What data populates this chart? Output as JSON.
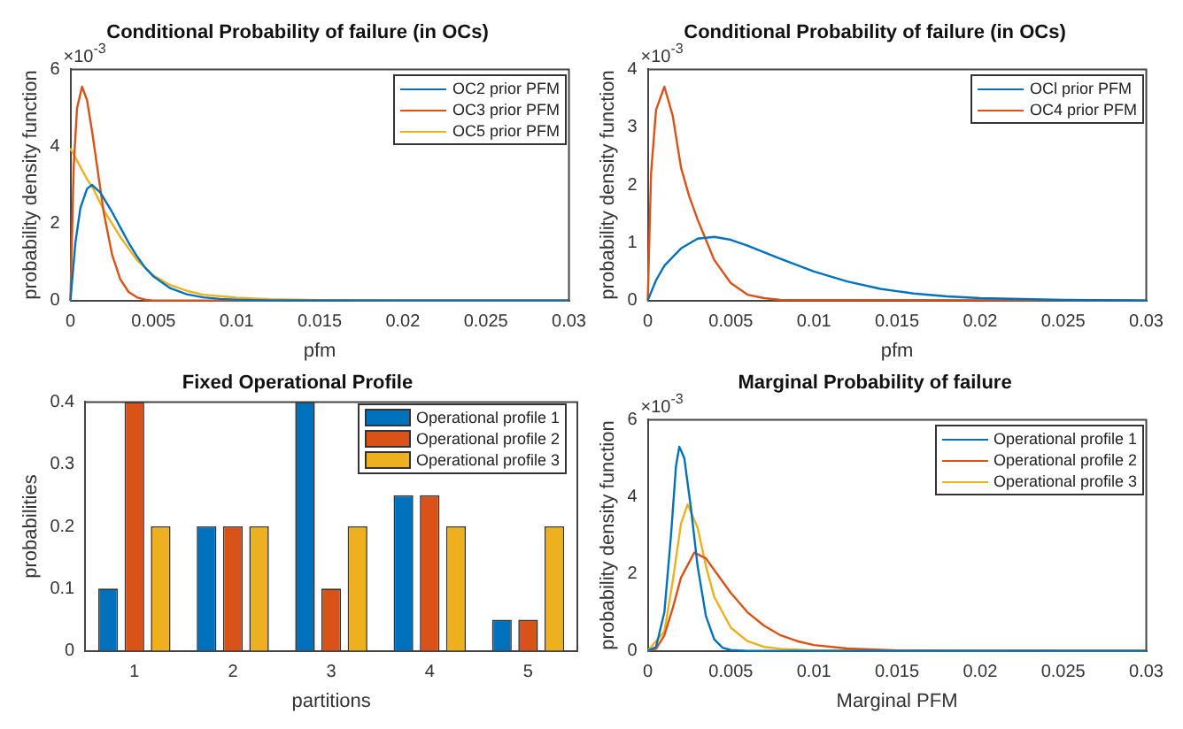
{
  "chart_data": [
    {
      "type": "line",
      "title": "Conditional Probability of failure (in OCs)",
      "xlabel": "pfm",
      "ylabel": "probability density function",
      "annotations": [
        "×10$^{-3}$"
      ],
      "xlim": [
        0,
        0.03
      ],
      "xticks": [
        0,
        0.005,
        0.01,
        0.015,
        0.02,
        0.025,
        0.03
      ],
      "ylim": [
        0,
        6
      ],
      "yticks": [
        0,
        2,
        4,
        6
      ],
      "legend": "top right",
      "marker": "none",
      "line_style": "solid",
      "series": [
        {
          "name": "OC2 prior PFM",
          "color": "#0072bd",
          "x": [
            0,
            0.0003,
            0.0006,
            0.001,
            0.0013,
            0.0018,
            0.0025,
            0.003,
            0.0035,
            0.004,
            0.0045,
            0.005,
            0.006,
            0.007,
            0.008,
            0.009,
            0.01,
            0.012,
            0.015,
            0.02,
            0.025,
            0.03
          ],
          "values": [
            0,
            1.5,
            2.4,
            2.9,
            3.0,
            2.8,
            2.3,
            1.9,
            1.5,
            1.15,
            0.85,
            0.62,
            0.32,
            0.16,
            0.08,
            0.04,
            0.02,
            0,
            0,
            0,
            0,
            0
          ]
        },
        {
          "name": "OC3 prior PFM",
          "color": "#d95319",
          "x": [
            0,
            0.0002,
            0.0004,
            0.0007,
            0.001,
            0.0013,
            0.0016,
            0.002,
            0.0025,
            0.003,
            0.0035,
            0.004,
            0.0045,
            0.005,
            0.006,
            0.03
          ],
          "values": [
            0,
            3.5,
            5.0,
            5.55,
            5.2,
            4.4,
            3.5,
            2.3,
            1.2,
            0.55,
            0.22,
            0.08,
            0.02,
            0,
            0,
            0
          ]
        },
        {
          "name": "OC5 prior PFM",
          "color": "#edb120",
          "x": [
            0,
            0.0005,
            0.001,
            0.0014,
            0.002,
            0.003,
            0.004,
            0.005,
            0.006,
            0.007,
            0.008,
            0.01,
            0.012,
            0.015,
            0.02,
            0.03
          ],
          "values": [
            3.95,
            3.55,
            3.15,
            2.88,
            2.35,
            1.65,
            1.05,
            0.65,
            0.4,
            0.25,
            0.15,
            0.07,
            0.03,
            0.01,
            0,
            0
          ]
        }
      ]
    },
    {
      "type": "line",
      "title": "Conditional Probability of failure (in OCs)",
      "xlabel": "pfm",
      "ylabel": "probability density function",
      "annotations": [
        "×10$^{-3}$"
      ],
      "xlim": [
        0,
        0.03
      ],
      "xticks": [
        0,
        0.005,
        0.01,
        0.015,
        0.02,
        0.025,
        0.03
      ],
      "ylim": [
        0,
        4
      ],
      "yticks": [
        0,
        1,
        2,
        3,
        4
      ],
      "legend": "top right",
      "marker": "none",
      "line_style": "solid",
      "series": [
        {
          "name": "OCl prior PFM",
          "color": "#0072bd",
          "x": [
            0,
            0.0005,
            0.001,
            0.002,
            0.003,
            0.004,
            0.005,
            0.006,
            0.008,
            0.01,
            0.012,
            0.014,
            0.016,
            0.018,
            0.02,
            0.025,
            0.03
          ],
          "values": [
            0,
            0.35,
            0.6,
            0.9,
            1.07,
            1.1,
            1.05,
            0.95,
            0.72,
            0.5,
            0.33,
            0.2,
            0.12,
            0.07,
            0.04,
            0.01,
            0
          ]
        },
        {
          "name": "OC4 prior PFM",
          "color": "#d95319",
          "x": [
            0,
            0.0002,
            0.0005,
            0.001,
            0.0015,
            0.002,
            0.0025,
            0.003,
            0.0035,
            0.004,
            0.005,
            0.006,
            0.007,
            0.008,
            0.03
          ],
          "values": [
            0,
            2.2,
            3.3,
            3.7,
            3.2,
            2.3,
            1.8,
            1.4,
            1.05,
            0.7,
            0.3,
            0.1,
            0.04,
            0.01,
            0
          ]
        }
      ]
    },
    {
      "type": "bar",
      "title": "Fixed Operational Profile",
      "xlabel": "partitions",
      "ylabel": "probabilities",
      "categories": [
        "1",
        "2",
        "3",
        "4",
        "5"
      ],
      "ylim": [
        0,
        0.4
      ],
      "yticks": [
        0,
        0.1,
        0.2,
        0.3,
        0.4
      ],
      "legend": "top right",
      "series": [
        {
          "name": "Operational profile 1",
          "color": "#0072bd",
          "values": [
            0.1,
            0.2,
            0.4,
            0.25,
            0.05
          ]
        },
        {
          "name": "Operational profile 2",
          "color": "#d95319",
          "values": [
            0.4,
            0.2,
            0.1,
            0.25,
            0.05
          ]
        },
        {
          "name": "Operational profile 3",
          "color": "#edb120",
          "values": [
            0.2,
            0.2,
            0.2,
            0.2,
            0.2
          ]
        }
      ]
    },
    {
      "type": "line",
      "title": "Marginal Probability of failure",
      "xlabel": "Marginal PFM",
      "ylabel": "probability density function",
      "annotations": [
        "×10$^{-3}$"
      ],
      "xlim": [
        0,
        0.03
      ],
      "xticks": [
        0,
        0.005,
        0.01,
        0.015,
        0.02,
        0.025,
        0.03
      ],
      "ylim": [
        0,
        6
      ],
      "yticks": [
        0,
        2,
        4,
        6
      ],
      "legend": "top right",
      "marker": "none",
      "line_style": "solid",
      "series": [
        {
          "name": "Operational profile 1",
          "color": "#0072bd",
          "x": [
            0,
            0.0005,
            0.001,
            0.0014,
            0.0017,
            0.0019,
            0.0022,
            0.0026,
            0.003,
            0.0035,
            0.004,
            0.0045,
            0.005,
            0.006,
            0.03
          ],
          "values": [
            0,
            0.1,
            1.0,
            3.0,
            4.8,
            5.3,
            5.0,
            3.7,
            2.2,
            0.9,
            0.3,
            0.08,
            0.02,
            0,
            0
          ]
        },
        {
          "name": "Operational profile 2",
          "color": "#d95319",
          "x": [
            0,
            0.0005,
            0.001,
            0.0015,
            0.002,
            0.0028,
            0.0035,
            0.004,
            0.005,
            0.006,
            0.007,
            0.008,
            0.009,
            0.01,
            0.012,
            0.015,
            0.02,
            0.03
          ],
          "values": [
            0,
            0.05,
            0.4,
            1.1,
            1.9,
            2.55,
            2.4,
            2.1,
            1.5,
            1.0,
            0.65,
            0.4,
            0.25,
            0.15,
            0.06,
            0.01,
            0,
            0
          ]
        },
        {
          "name": "Operational profile 3",
          "color": "#edb120",
          "x": [
            0,
            0.001,
            0.0015,
            0.002,
            0.0024,
            0.003,
            0.0035,
            0.004,
            0.005,
            0.006,
            0.007,
            0.008,
            0.01,
            0.03
          ],
          "values": [
            0,
            0.5,
            1.8,
            3.3,
            3.8,
            3.2,
            2.2,
            1.4,
            0.6,
            0.25,
            0.1,
            0.05,
            0.01,
            0
          ]
        }
      ]
    }
  ]
}
